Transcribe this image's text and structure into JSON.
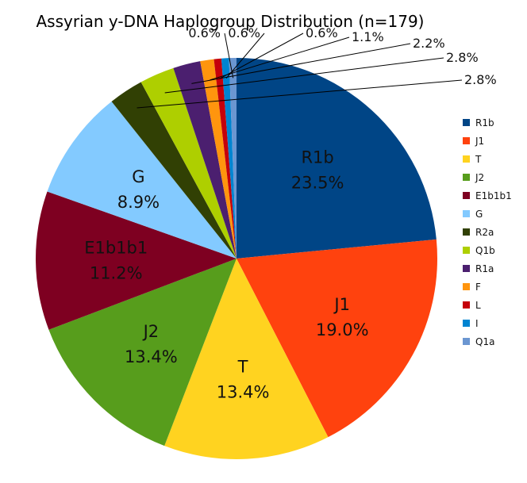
{
  "chart_data": {
    "type": "pie",
    "title": "Assyrian y-DNA Haplogroup Distribution (n=179)",
    "legend_position": "right",
    "start_angle_deg": 0,
    "direction": "clockwise",
    "slices": [
      {
        "label": "R1b",
        "value": 23.5,
        "display": "23.5%",
        "color": "#004586"
      },
      {
        "label": "J1",
        "value": 19.0,
        "display": "19.0%",
        "color": "#ff420e"
      },
      {
        "label": "T",
        "value": 13.4,
        "display": "13.4%",
        "color": "#ffd320"
      },
      {
        "label": "J2",
        "value": 13.4,
        "display": "13.4%",
        "color": "#579d1c"
      },
      {
        "label": "E1b1b1",
        "value": 11.2,
        "display": "11.2%",
        "color": "#7e0021"
      },
      {
        "label": "G",
        "value": 8.9,
        "display": "8.9%",
        "color": "#83caff"
      },
      {
        "label": "R2a",
        "value": 2.8,
        "display": "2.8%",
        "color": "#314004"
      },
      {
        "label": "Q1b",
        "value": 2.8,
        "display": "2.8%",
        "color": "#aecf00"
      },
      {
        "label": "R1a",
        "value": 2.2,
        "display": "2.2%",
        "color": "#4b1f6f"
      },
      {
        "label": "F",
        "value": 1.1,
        "display": "1.1%",
        "color": "#ff950e"
      },
      {
        "label": "L",
        "value": 0.6,
        "display": "0.6%",
        "color": "#c5000b"
      },
      {
        "label": "I",
        "value": 0.6,
        "display": "0.6%",
        "color": "#0084d1"
      },
      {
        "label": "Q1a",
        "value": 0.6,
        "display": "0.6%",
        "color": "#6b96d1"
      }
    ]
  }
}
